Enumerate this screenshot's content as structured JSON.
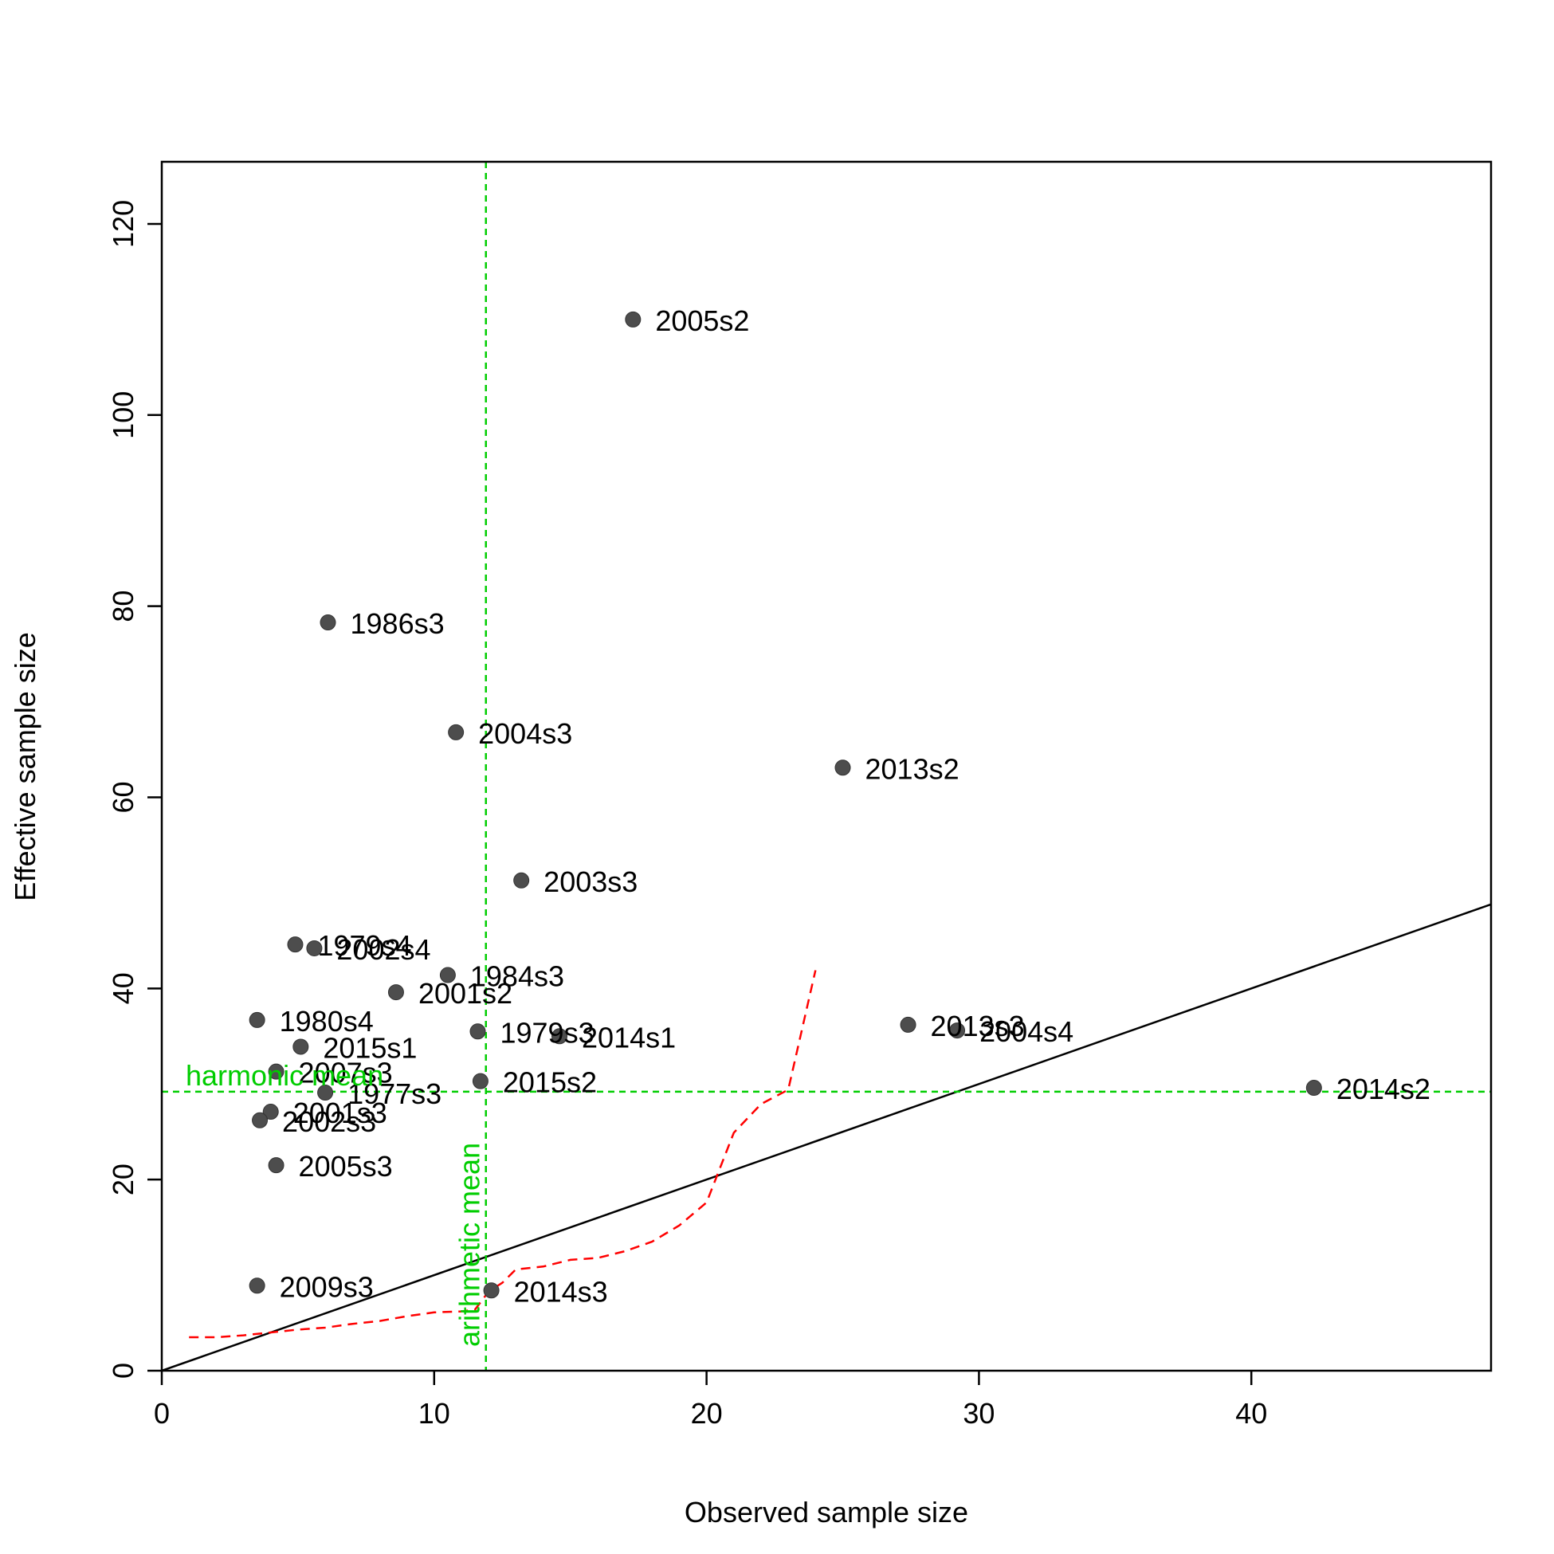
{
  "chart_data": {
    "type": "scatter",
    "title": "",
    "xlabel": "Observed sample size",
    "ylabel": "Effective sample size",
    "xlim": [
      0,
      48.8
    ],
    "ylim": [
      0,
      126.5
    ],
    "x_ticks": [
      0,
      10,
      20,
      30,
      40
    ],
    "y_ticks": [
      0,
      20,
      40,
      60,
      80,
      100,
      120
    ],
    "grid": false,
    "legend": "none",
    "points": [
      {
        "label": "2005s2",
        "x": 17.3,
        "y": 110.0
      },
      {
        "label": "1986s3",
        "x": 6.1,
        "y": 78.3
      },
      {
        "label": "2004s3",
        "x": 10.8,
        "y": 66.8
      },
      {
        "label": "2013s2",
        "x": 25.0,
        "y": 63.1
      },
      {
        "label": "2003s3",
        "x": 13.2,
        "y": 51.3
      },
      {
        "label": "1979s4",
        "x": 4.9,
        "y": 44.6
      },
      {
        "label": "2002s4",
        "x": 5.6,
        "y": 44.2
      },
      {
        "label": "1984s3",
        "x": 10.5,
        "y": 41.4
      },
      {
        "label": "2001s2",
        "x": 8.6,
        "y": 39.6
      },
      {
        "label": "1980s4",
        "x": 3.5,
        "y": 36.7
      },
      {
        "label": "1979s3",
        "x": 11.6,
        "y": 35.5
      },
      {
        "label": "2014s1",
        "x": 14.6,
        "y": 35.0
      },
      {
        "label": "2013s3",
        "x": 27.4,
        "y": 36.2
      },
      {
        "label": "2004s4",
        "x": 29.2,
        "y": 35.6
      },
      {
        "label": "2015s1",
        "x": 5.1,
        "y": 33.9
      },
      {
        "label": "2007s3",
        "x": 4.2,
        "y": 31.3
      },
      {
        "label": "2015s2",
        "x": 11.7,
        "y": 30.3
      },
      {
        "label": "1977s3",
        "x": 6.0,
        "y": 29.1
      },
      {
        "label": "2014s2",
        "x": 42.3,
        "y": 29.6
      },
      {
        "label": "2001s3",
        "x": 4.0,
        "y": 27.1
      },
      {
        "label": "2002s3",
        "x": 3.6,
        "y": 26.2
      },
      {
        "label": "2005s3",
        "x": 4.2,
        "y": 21.5
      },
      {
        "label": "2009s3",
        "x": 3.5,
        "y": 8.9
      },
      {
        "label": "2014s3",
        "x": 12.1,
        "y": 8.4
      }
    ],
    "identity_line": {
      "x": [
        0,
        48.8
      ],
      "y": [
        0,
        48.8
      ]
    },
    "harmonic_mean": {
      "label": "harmonic mean",
      "value": 29.2,
      "orientation": "horizontal"
    },
    "arithmetic_mean": {
      "label": "arithmetic mean",
      "value": 11.9,
      "orientation": "vertical"
    },
    "loess_curve": {
      "x": [
        1.0,
        2.0,
        3.0,
        4.0,
        5.0,
        6.0,
        7.0,
        8.0,
        9.0,
        10.0,
        11.0,
        11.5,
        12.0,
        12.5,
        13.0,
        14.0,
        15.0,
        16.0,
        17.0,
        18.0,
        19.0,
        20.0,
        21.0,
        22.0,
        23.0,
        24.0
      ],
      "y": [
        3.5,
        3.5,
        3.7,
        4.0,
        4.3,
        4.5,
        4.9,
        5.2,
        5.7,
        6.1,
        6.2,
        6.4,
        8.3,
        9.2,
        10.6,
        10.9,
        11.6,
        11.8,
        12.5,
        13.5,
        15.2,
        17.6,
        24.9,
        27.9,
        29.4,
        41.9
      ]
    },
    "colors": {
      "points": "#4d4d4d",
      "identity_line": "#000000",
      "mean_lines": "#00cd00",
      "loess_curve": "#ff0000"
    }
  }
}
